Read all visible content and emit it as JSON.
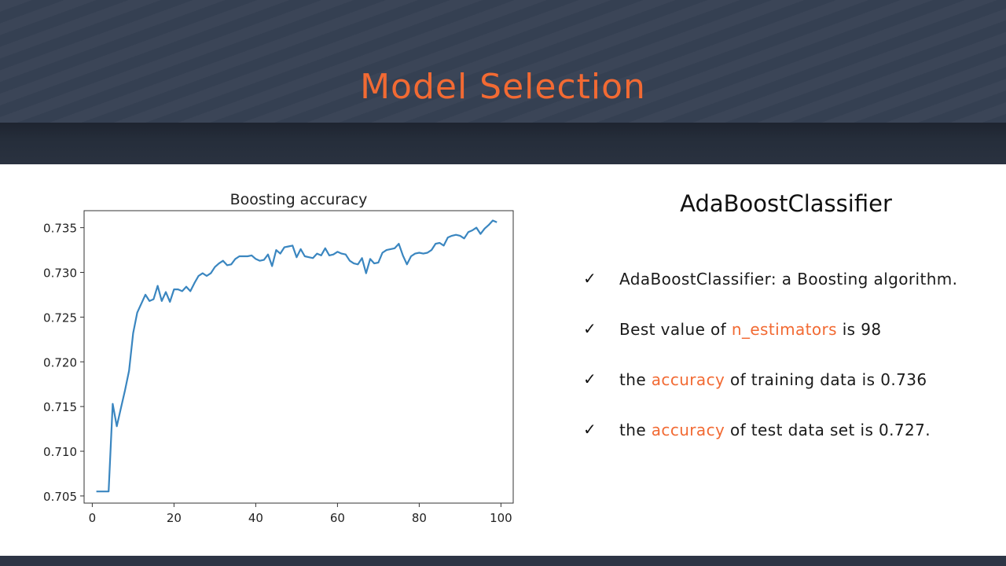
{
  "slide": {
    "title": "Model Selection"
  },
  "panel": {
    "heading": "AdaBoostClassifier",
    "bullets": [
      {
        "check": "✓",
        "parts": [
          {
            "text": "AdaBoostClassifier: a Boosting algorithm.",
            "hl": false
          }
        ]
      },
      {
        "check": "✓",
        "parts": [
          {
            "text": "Best value of ",
            "hl": false
          },
          {
            "text": "n_estimators",
            "hl": true
          },
          {
            "text": " is 98",
            "hl": false
          }
        ]
      },
      {
        "check": "✓",
        "parts": [
          {
            "text": "the ",
            "hl": false
          },
          {
            "text": "accuracy",
            "hl": true
          },
          {
            "text": " of training data is 0.736",
            "hl": false
          }
        ]
      },
      {
        "check": "✓",
        "parts": [
          {
            "text": "the ",
            "hl": false
          },
          {
            "text": "accuracy",
            "hl": true
          },
          {
            "text": " of test data set is 0.727.",
            "hl": false
          }
        ]
      }
    ]
  },
  "colors": {
    "accent": "#f26a33",
    "header": "#3b4557",
    "line": "#3a86c0"
  },
  "chart_data": {
    "type": "line",
    "title": "Boosting accuracy",
    "xlabel": "",
    "ylabel": "",
    "xlim": [
      -2,
      103
    ],
    "ylim": [
      0.7042,
      0.7369
    ],
    "xticks": [
      0,
      20,
      40,
      60,
      80,
      100
    ],
    "yticks": [
      0.705,
      0.71,
      0.715,
      0.72,
      0.725,
      0.73,
      0.735
    ],
    "ytick_labels": [
      "0.705",
      "0.710",
      "0.715",
      "0.720",
      "0.725",
      "0.730",
      "0.735"
    ],
    "grid": false,
    "series": [
      {
        "name": "",
        "x": [
          1,
          2,
          3,
          4,
          5,
          6,
          7,
          8,
          9,
          10,
          11,
          12,
          13,
          14,
          15,
          16,
          17,
          18,
          19,
          20,
          21,
          22,
          23,
          24,
          25,
          26,
          27,
          28,
          29,
          30,
          31,
          32,
          33,
          34,
          35,
          36,
          37,
          38,
          39,
          40,
          41,
          42,
          43,
          44,
          45,
          46,
          47,
          48,
          49,
          50,
          51,
          52,
          53,
          54,
          55,
          56,
          57,
          58,
          59,
          60,
          61,
          62,
          63,
          64,
          65,
          66,
          67,
          68,
          69,
          70,
          71,
          72,
          73,
          74,
          75,
          76,
          77,
          78,
          79,
          80,
          81,
          82,
          83,
          84,
          85,
          86,
          87,
          88,
          89,
          90,
          91,
          92,
          93,
          94,
          95,
          96,
          97,
          98,
          99
        ],
        "y": [
          0.7055,
          0.7055,
          0.7055,
          0.7055,
          0.7153,
          0.7128,
          0.7148,
          0.7168,
          0.719,
          0.7232,
          0.7255,
          0.7265,
          0.7275,
          0.7268,
          0.727,
          0.7285,
          0.7268,
          0.7278,
          0.7267,
          0.7281,
          0.7281,
          0.7279,
          0.7284,
          0.7279,
          0.7288,
          0.7296,
          0.7299,
          0.7296,
          0.7299,
          0.7306,
          0.731,
          0.7313,
          0.7308,
          0.7309,
          0.7315,
          0.7318,
          0.7318,
          0.7318,
          0.7319,
          0.7315,
          0.7313,
          0.7314,
          0.732,
          0.7307,
          0.7325,
          0.7321,
          0.7328,
          0.7329,
          0.733,
          0.7317,
          0.7326,
          0.7318,
          0.7317,
          0.7316,
          0.7321,
          0.7319,
          0.7327,
          0.7319,
          0.732,
          0.7323,
          0.7321,
          0.732,
          0.7313,
          0.731,
          0.7309,
          0.7316,
          0.7299,
          0.7315,
          0.731,
          0.7311,
          0.7322,
          0.7325,
          0.7326,
          0.7327,
          0.7332,
          0.7319,
          0.7309,
          0.7318,
          0.7321,
          0.7322,
          0.7321,
          0.7322,
          0.7325,
          0.7332,
          0.7333,
          0.733,
          0.7339,
          0.7341,
          0.7342,
          0.7341,
          0.7338,
          0.7345,
          0.7347,
          0.735,
          0.7343,
          0.7349,
          0.7353,
          0.7358,
          0.7356
        ]
      }
    ]
  }
}
